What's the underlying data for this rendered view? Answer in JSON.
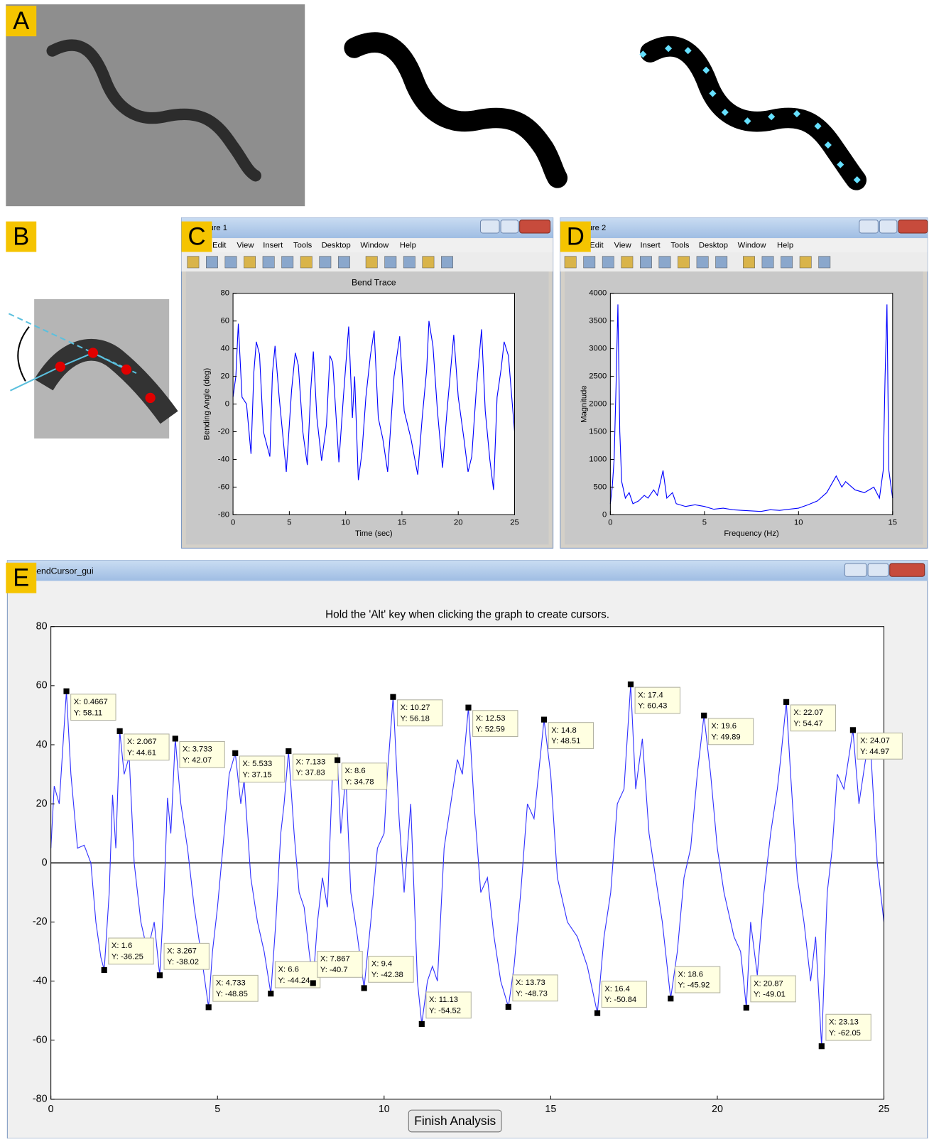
{
  "panel_labels": [
    "A",
    "B",
    "C",
    "D",
    "E"
  ],
  "windows": [
    {
      "title": "ure 1",
      "menu": [
        "Edit",
        "View",
        "Insert",
        "Tools",
        "Desktop",
        "Window",
        "Help"
      ]
    },
    {
      "title": "ure 2",
      "menu": [
        "Edit",
        "View",
        "Insert",
        "Tools",
        "Desktop",
        "Window",
        "Help"
      ]
    },
    {
      "title": "endCursor_gui",
      "button": "Finish Analysis"
    }
  ],
  "chart_data": [
    {
      "type": "line",
      "title": "Bend Trace",
      "xlabel": "Time (sec)",
      "ylabel": "Bending Angle (deg)",
      "xlim": [
        0,
        25
      ],
      "ylim": [
        -80,
        80
      ],
      "xticks": [
        0,
        5,
        10,
        15,
        20,
        25
      ],
      "yticks": [
        -80,
        -60,
        -40,
        -20,
        0,
        20,
        40,
        60,
        80
      ],
      "series": [
        {
          "color": "#0000ff",
          "x": [
            0,
            0.25,
            0.47,
            0.8,
            1.2,
            1.6,
            1.85,
            2.07,
            2.35,
            2.7,
            3.27,
            3.5,
            3.73,
            4.1,
            4.73,
            5.2,
            5.53,
            5.8,
            6.2,
            6.6,
            6.9,
            7.13,
            7.45,
            7.87,
            8.3,
            8.6,
            8.85,
            9.4,
            9.8,
            10.27,
            10.6,
            10.8,
            11.13,
            11.45,
            11.8,
            12.2,
            12.53,
            12.9,
            13.3,
            13.73,
            14.3,
            14.8,
            15.2,
            15.8,
            16.4,
            16.8,
            17.2,
            17.4,
            17.75,
            18.15,
            18.6,
            19.0,
            19.6,
            20.0,
            20.5,
            20.87,
            21.2,
            21.6,
            22.07,
            22.4,
            22.8,
            23.13,
            23.45,
            23.8,
            24.07,
            24.45,
            24.8,
            25
          ],
          "values": [
            5,
            20,
            58,
            5,
            0,
            -36,
            23,
            45,
            36,
            -20,
            -38,
            22,
            42,
            5,
            -49,
            10,
            37,
            28,
            -20,
            -44,
            10,
            38,
            -10,
            -41,
            -15,
            35,
            30,
            -42,
            5,
            56,
            -10,
            20,
            -55,
            -35,
            5,
            35,
            53,
            -10,
            -25,
            -49,
            20,
            49,
            -5,
            -25,
            -51,
            -10,
            25,
            60,
            42,
            -5,
            -46,
            -5,
            50,
            5,
            -25,
            -49,
            -38,
            10,
            54,
            -5,
            -40,
            -62,
            5,
            25,
            45,
            35,
            0,
            -20
          ]
        }
      ]
    },
    {
      "type": "line",
      "xlabel": "Frequency (Hz)",
      "ylabel": "Magnitude",
      "xlim": [
        0,
        15
      ],
      "ylim": [
        0,
        4000
      ],
      "xticks": [
        0,
        5,
        10,
        15
      ],
      "yticks": [
        0,
        500,
        1000,
        1500,
        2000,
        2500,
        3000,
        3500,
        4000
      ],
      "series": [
        {
          "color": "#0000ff",
          "x": [
            0,
            0.1,
            0.2,
            0.3,
            0.4,
            0.5,
            0.6,
            0.8,
            1.0,
            1.2,
            1.5,
            1.8,
            2.0,
            2.3,
            2.5,
            2.8,
            3.0,
            3.3,
            3.5,
            4.0,
            4.5,
            5.0,
            5.5,
            6.0,
            6.5,
            7.0,
            7.5,
            8.0,
            8.5,
            9.0,
            9.5,
            10.0,
            10.5,
            11.0,
            11.5,
            12.0,
            12.3,
            12.5,
            13.0,
            13.5,
            14.0,
            14.3,
            14.5,
            14.6,
            14.7,
            14.8,
            15.0
          ],
          "values": [
            200,
            500,
            1000,
            2300,
            3800,
            1500,
            600,
            300,
            400,
            200,
            250,
            350,
            300,
            450,
            350,
            800,
            300,
            400,
            200,
            150,
            180,
            150,
            100,
            120,
            90,
            80,
            70,
            60,
            90,
            80,
            100,
            120,
            180,
            250,
            400,
            700,
            500,
            600,
            450,
            400,
            500,
            300,
            800,
            2500,
            3800,
            800,
            300
          ]
        }
      ]
    },
    {
      "type": "line",
      "title": "Hold the 'Alt' key when clicking the graph to create cursors.",
      "xlim": [
        0,
        25
      ],
      "ylim": [
        -80,
        80
      ],
      "xticks": [
        0,
        5,
        10,
        15,
        20,
        25
      ],
      "yticks": [
        -80,
        -60,
        -40,
        -20,
        0,
        20,
        40,
        60,
        80
      ],
      "hline": 0,
      "series": [
        {
          "color": "#3333ff",
          "x": [
            0,
            0.1,
            0.25,
            0.4667,
            0.6,
            0.8,
            1.0,
            1.2,
            1.35,
            1.5,
            1.6,
            1.75,
            1.85,
            1.95,
            2.067,
            2.2,
            2.35,
            2.5,
            2.7,
            2.9,
            3.1,
            3.267,
            3.4,
            3.5,
            3.6,
            3.733,
            3.9,
            4.1,
            4.3,
            4.5,
            4.733,
            4.85,
            5.0,
            5.2,
            5.35,
            5.533,
            5.7,
            5.8,
            6.0,
            6.2,
            6.4,
            6.6,
            6.75,
            6.9,
            7.0,
            7.133,
            7.3,
            7.45,
            7.6,
            7.75,
            7.867,
            8.0,
            8.15,
            8.3,
            8.45,
            8.6,
            8.7,
            8.85,
            9.0,
            9.2,
            9.4,
            9.6,
            9.8,
            10.0,
            10.1,
            10.27,
            10.45,
            10.6,
            10.8,
            11.0,
            11.13,
            11.3,
            11.45,
            11.6,
            11.8,
            12.0,
            12.2,
            12.35,
            12.53,
            12.7,
            12.9,
            13.1,
            13.3,
            13.5,
            13.73,
            13.9,
            14.1,
            14.3,
            14.5,
            14.8,
            15.0,
            15.2,
            15.5,
            15.8,
            16.1,
            16.4,
            16.6,
            16.8,
            17.0,
            17.2,
            17.4,
            17.55,
            17.75,
            17.95,
            18.15,
            18.35,
            18.6,
            18.8,
            19.0,
            19.2,
            19.4,
            19.6,
            19.8,
            20.0,
            20.2,
            20.5,
            20.7,
            20.87,
            21.0,
            21.2,
            21.4,
            21.6,
            21.8,
            21.9,
            22.07,
            22.2,
            22.4,
            22.6,
            22.8,
            22.95,
            23.13,
            23.3,
            23.45,
            23.6,
            23.8,
            24.07,
            24.25,
            24.45,
            24.6,
            24.8,
            25.0
          ],
          "values": [
            5,
            26,
            20,
            58.11,
            30,
            5,
            6,
            0,
            -20,
            -32,
            -36.25,
            -10,
            23,
            5,
            44.61,
            30,
            36,
            0,
            -20,
            -30,
            -20,
            -38.02,
            -10,
            22,
            10,
            42.07,
            20,
            5,
            -15,
            -30,
            -48.85,
            -30,
            -15,
            10,
            30,
            37.15,
            20,
            28,
            -5,
            -20,
            -30,
            -44.24,
            -20,
            10,
            20,
            37.83,
            10,
            -10,
            -15,
            -30,
            -40.7,
            -20,
            -5,
            -15,
            30,
            34.78,
            10,
            30,
            -10,
            -25,
            -42.38,
            -20,
            5,
            10,
            30,
            56.18,
            15,
            -10,
            20,
            -40,
            -54.52,
            -40,
            -35,
            -40,
            5,
            20,
            35,
            30,
            52.59,
            20,
            -10,
            -5,
            -25,
            -40,
            -48.73,
            -35,
            -10,
            20,
            15,
            48.51,
            30,
            -5,
            -20,
            -25,
            -35,
            -50.84,
            -25,
            -10,
            20,
            25,
            60.43,
            25,
            42,
            10,
            -5,
            -20,
            -45.92,
            -30,
            -5,
            5,
            30,
            49.89,
            30,
            5,
            -10,
            -25,
            -30,
            -49.01,
            -20,
            -38,
            -10,
            10,
            25,
            35,
            54.47,
            30,
            -5,
            -20,
            -40,
            -25,
            -62.05,
            -10,
            5,
            30,
            25,
            44.97,
            20,
            35,
            39,
            0,
            -20
          ]
        }
      ],
      "datatips": [
        {
          "x": 0.4667,
          "y": 58.11,
          "x_label": "X: 0.4667",
          "y_label": "Y: 58.11"
        },
        {
          "x": 2.067,
          "y": 44.61,
          "x_label": "X: 2.067",
          "y_label": "Y: 44.61"
        },
        {
          "x": 3.733,
          "y": 42.07,
          "x_label": "X: 3.733",
          "y_label": "Y: 42.07"
        },
        {
          "x": 5.533,
          "y": 37.15,
          "x_label": "X: 5.533",
          "y_label": "Y: 37.15"
        },
        {
          "x": 7.133,
          "y": 37.83,
          "x_label": "X: 7.133",
          "y_label": "Y: 37.83"
        },
        {
          "x": 8.6,
          "y": 34.78,
          "x_label": "X: 8.6",
          "y_label": "Y: 34.78"
        },
        {
          "x": 10.27,
          "y": 56.18,
          "x_label": "X: 10.27",
          "y_label": "Y: 56.18"
        },
        {
          "x": 12.53,
          "y": 52.59,
          "x_label": "X: 12.53",
          "y_label": "Y: 52.59"
        },
        {
          "x": 14.8,
          "y": 48.51,
          "x_label": "X: 14.8",
          "y_label": "Y: 48.51"
        },
        {
          "x": 17.4,
          "y": 60.43,
          "x_label": "X: 17.4",
          "y_label": "Y: 60.43"
        },
        {
          "x": 19.6,
          "y": 49.89,
          "x_label": "X: 19.6",
          "y_label": "Y: 49.89"
        },
        {
          "x": 22.07,
          "y": 54.47,
          "x_label": "X: 22.07",
          "y_label": "Y: 54.47"
        },
        {
          "x": 24.07,
          "y": 44.97,
          "x_label": "X: 24.07",
          "y_label": "Y: 44.97"
        },
        {
          "x": 1.6,
          "y": -36.25,
          "x_label": "X: 1.6",
          "y_label": "Y: -36.25"
        },
        {
          "x": 3.267,
          "y": -38.02,
          "x_label": "X: 3.267",
          "y_label": "Y: -38.02"
        },
        {
          "x": 4.733,
          "y": -48.85,
          "x_label": "X: 4.733",
          "y_label": "Y: -48.85"
        },
        {
          "x": 6.6,
          "y": -44.24,
          "x_label": "X: 6.6",
          "y_label": "Y: -44.24"
        },
        {
          "x": 7.867,
          "y": -40.7,
          "x_label": "X: 7.867",
          "y_label": "Y: -40.7"
        },
        {
          "x": 9.4,
          "y": -42.38,
          "x_label": "X: 9.4",
          "y_label": "Y: -42.38"
        },
        {
          "x": 11.13,
          "y": -54.52,
          "x_label": "X: 11.13",
          "y_label": "Y: -54.52"
        },
        {
          "x": 13.73,
          "y": -48.73,
          "x_label": "X: 13.73",
          "y_label": "Y: -48.73"
        },
        {
          "x": 16.4,
          "y": -50.84,
          "x_label": "X: 16.4",
          "y_label": "Y: -50.84"
        },
        {
          "x": 18.6,
          "y": -45.92,
          "x_label": "X: 18.6",
          "y_label": "Y: -45.92"
        },
        {
          "x": 20.87,
          "y": -49.01,
          "x_label": "X: 20.87",
          "y_label": "Y: -49.01"
        },
        {
          "x": 23.13,
          "y": -62.05,
          "x_label": "X: 23.13",
          "y_label": "Y: -62.05"
        }
      ]
    }
  ]
}
